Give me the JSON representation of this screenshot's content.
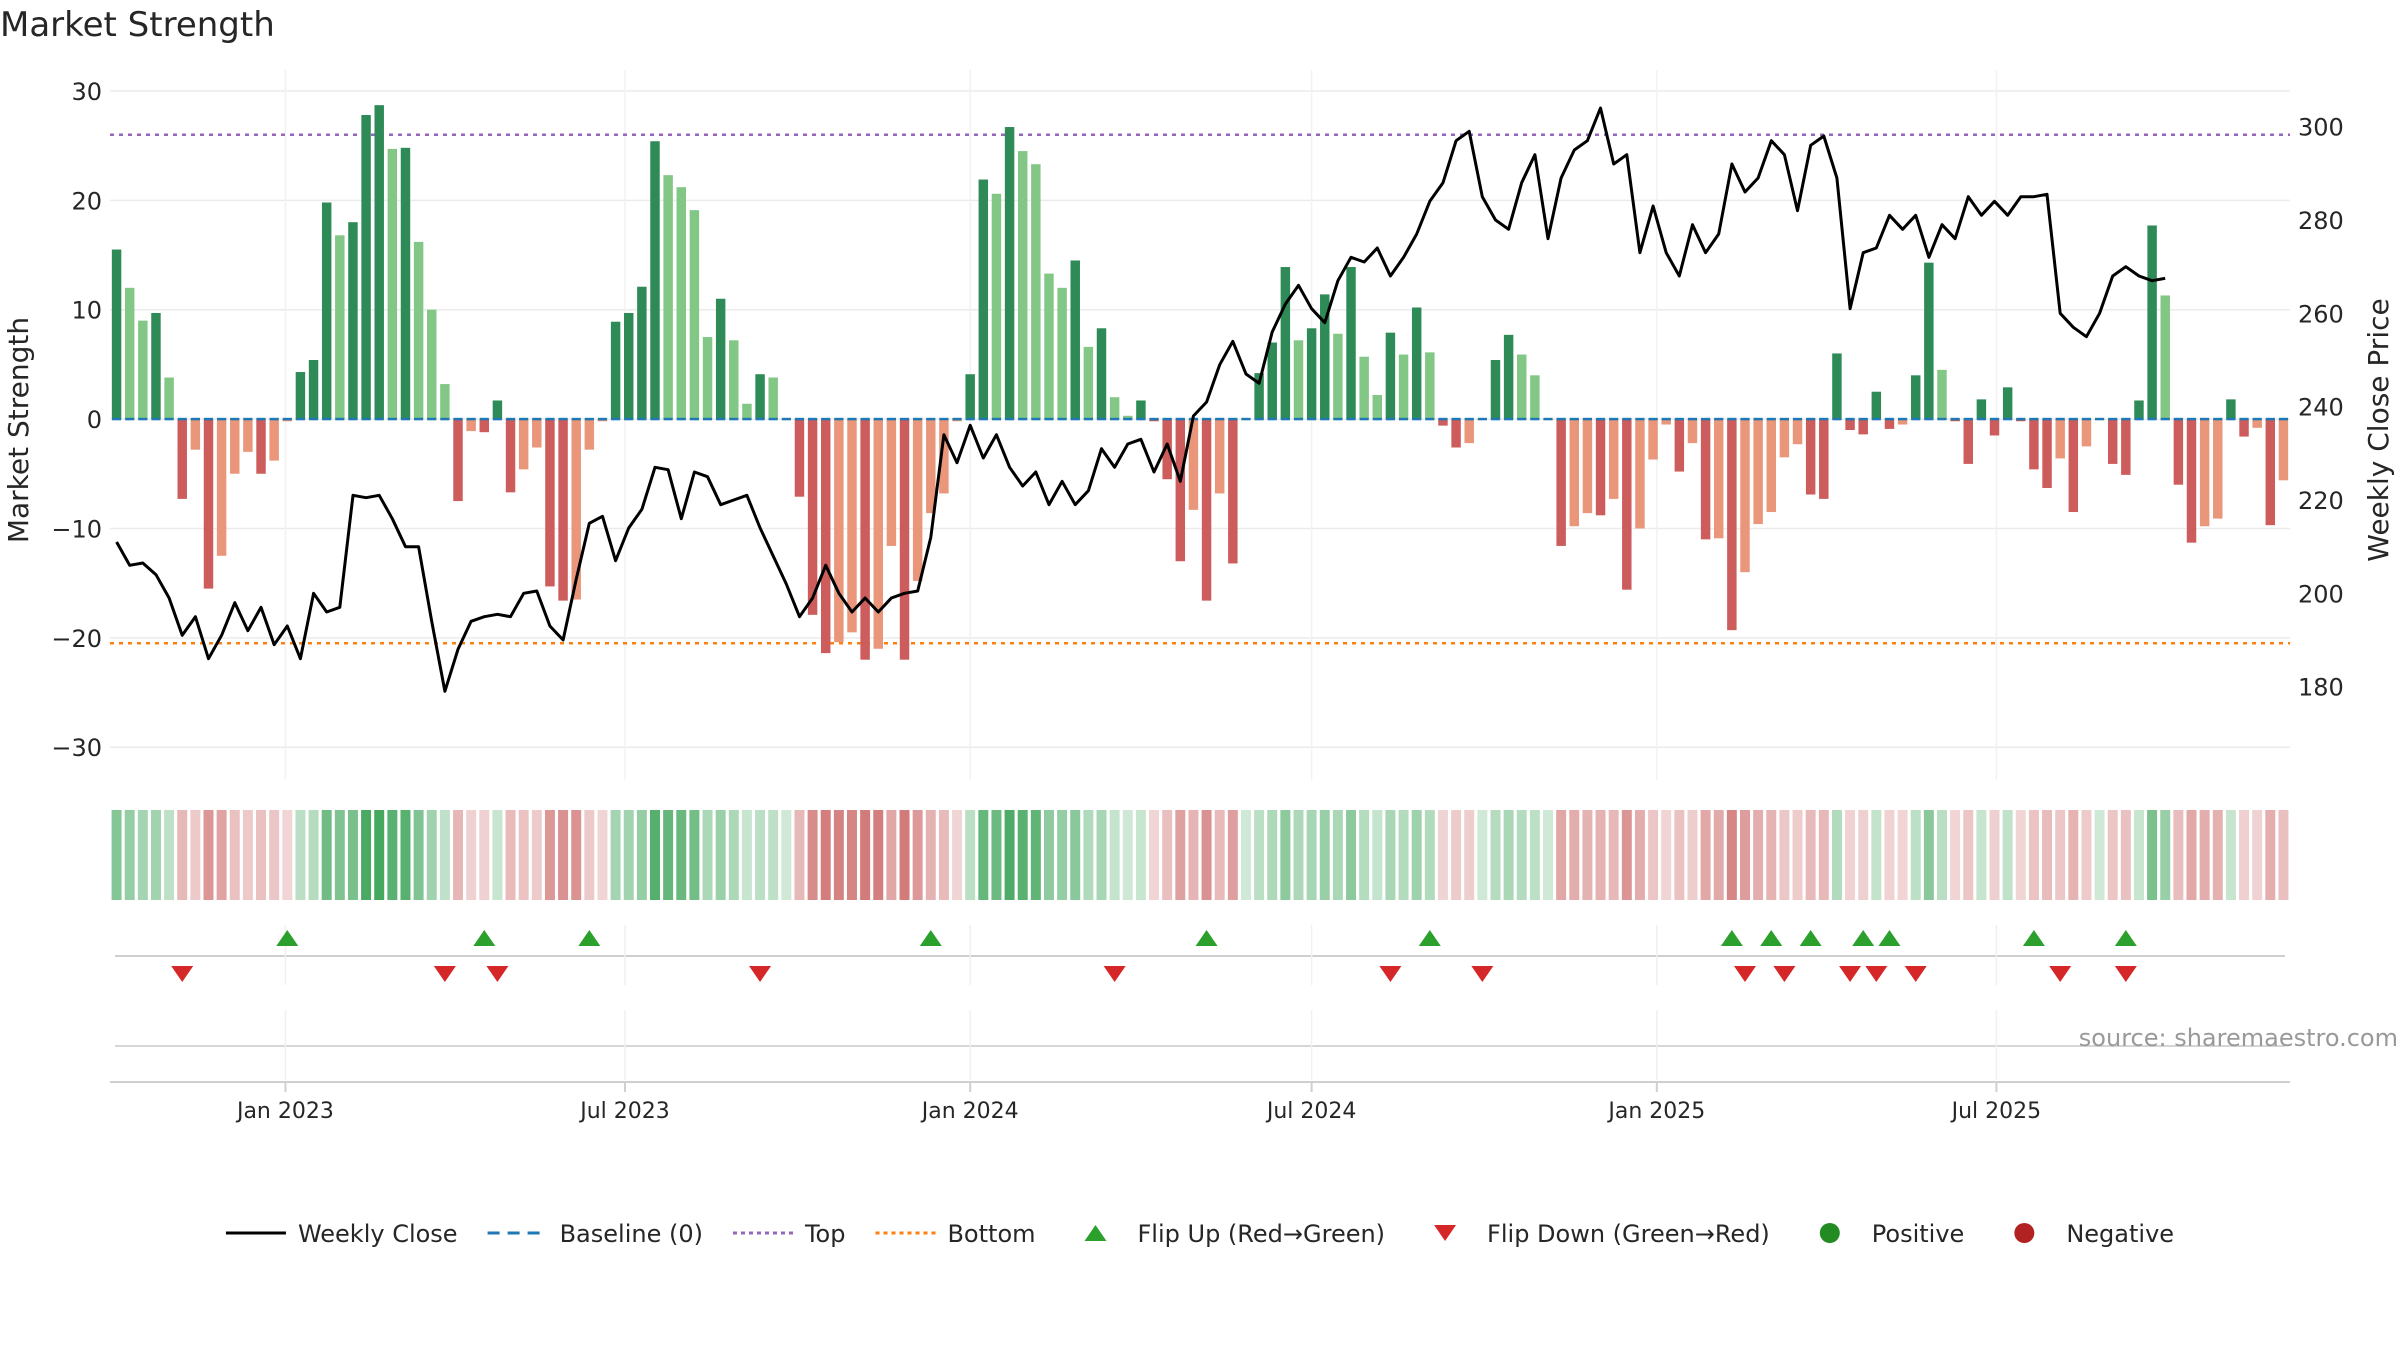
{
  "chart_data": {
    "type": "bar",
    "title": "Market Strength",
    "source": "source: sharemaestro.com",
    "ylabel_left": "Market Strength",
    "ylabel_right": "Weekly Close Price",
    "ylim_left": [
      -33,
      31
    ],
    "ylim_right": [
      160,
      310
    ],
    "yticks_left": [
      30,
      20,
      10,
      0,
      -10,
      -20,
      -30
    ],
    "yticks_left_labels": [
      "30",
      "20",
      "10",
      "0",
      "−10",
      "−20",
      "−30"
    ],
    "yticks_right": [
      300,
      280,
      260,
      240,
      220,
      200,
      180
    ],
    "yticks_right_labels": [
      "300",
      "280",
      "260",
      "240",
      "220",
      "200",
      "180"
    ],
    "top_level": 26,
    "bottom_level": -20.5,
    "week_start": "2022-10-03",
    "x_ticks": [
      {
        "label": "Jan 2023",
        "date": "2023-01-01"
      },
      {
        "label": "Jul 2023",
        "date": "2023-07-01"
      },
      {
        "label": "Jan 2024",
        "date": "2024-01-01"
      },
      {
        "label": "Jul 2024",
        "date": "2024-07-01"
      },
      {
        "label": "Jan 2025",
        "date": "2025-01-01"
      },
      {
        "label": "Jul 2025",
        "date": "2025-07-01"
      }
    ],
    "strength": [
      15.5,
      12,
      9,
      9.7,
      3.8,
      -7.3,
      -2.8,
      -15.5,
      -12.5,
      -5,
      -3,
      -5,
      -3.8,
      -0.2,
      4.3,
      5.4,
      19.8,
      16.8,
      18,
      27.8,
      28.7,
      24.7,
      24.8,
      16.2,
      10,
      3.2,
      -7.5,
      -1.1,
      -1.2,
      1.7,
      -6.7,
      -4.6,
      -2.6,
      -15.3,
      -16.6,
      -16.5,
      -2.8,
      -0.2,
      8.9,
      9.7,
      12.1,
      25.4,
      22.3,
      21.2,
      19.1,
      7.5,
      11,
      7.2,
      1.4,
      4.1,
      3.8,
      0,
      -7.1,
      -17.9,
      -21.4,
      -20.4,
      -19.5,
      -22,
      -21,
      -11.6,
      -22,
      -14.8,
      -8.6,
      -6.8,
      -0.2,
      4.1,
      21.9,
      20.6,
      26.7,
      24.5,
      23.3,
      13.3,
      12,
      14.5,
      6.6,
      8.3,
      2,
      0.3,
      1.7,
      -0.2,
      -5.5,
      -13,
      -8.3,
      -16.6,
      -6.8,
      -13.2,
      0,
      4.2,
      7,
      13.9,
      7.2,
      8.3,
      11.4,
      7.8,
      13.9,
      5.7,
      2.2,
      7.9,
      5.9,
      10.2,
      6.1,
      -0.6,
      -2.6,
      -2.2,
      0,
      5.4,
      7.7,
      5.9,
      4,
      0,
      -11.6,
      -9.8,
      -8.6,
      -8.8,
      -7.3,
      -15.6,
      -10,
      -3.7,
      -0.5,
      -4.8,
      -2.2,
      -11,
      -10.9,
      -19.3,
      -14,
      -9.6,
      -8.5,
      -3.5,
      -2.3,
      -6.9,
      -7.3,
      6,
      -1,
      -1.4,
      2.5,
      -0.9,
      -0.5,
      4,
      14.3,
      4.5,
      -0.2,
      -4.1,
      1.8,
      -1.5,
      2.9,
      -0.2,
      -4.6,
      -6.3,
      -3.6,
      -8.5,
      -2.5,
      0,
      -4.1,
      -5.1,
      1.7,
      17.7,
      11.3,
      -6,
      -11.3,
      -9.8,
      -9.1,
      1.8,
      -1.6,
      -0.8,
      -9.7,
      -5.6
    ],
    "close": [
      211,
      206,
      206.5,
      204,
      199,
      191,
      195,
      186,
      191,
      198,
      192,
      197,
      189,
      193,
      186,
      200,
      196,
      197,
      221,
      220.5,
      221,
      216,
      210,
      210,
      194,
      179,
      188,
      194,
      195,
      195.5,
      195,
      200,
      200.5,
      193,
      190,
      203,
      215,
      216.5,
      207,
      214,
      218,
      227,
      226.5,
      216,
      226,
      225,
      219,
      220,
      221,
      214,
      208,
      202,
      195,
      199,
      206,
      200,
      196,
      199,
      196,
      199,
      200,
      200.5,
      212,
      234,
      228,
      236,
      229,
      234,
      227,
      223,
      226,
      219,
      224,
      219,
      222,
      231,
      227,
      232,
      233,
      226,
      232,
      224,
      238,
      241,
      249,
      254,
      247,
      245,
      256,
      262,
      266,
      261,
      258,
      267,
      272,
      271,
      274,
      268,
      272,
      277,
      284,
      288,
      297,
      299,
      285,
      280,
      278,
      288,
      294,
      276,
      289,
      295,
      297,
      304,
      292,
      294,
      273,
      283,
      273,
      268,
      279,
      273,
      277,
      292,
      286,
      289,
      297,
      294,
      282,
      296,
      298,
      289,
      261,
      273,
      274,
      281,
      278,
      281,
      272,
      279,
      276,
      285,
      281,
      284,
      281,
      285,
      285,
      285.5,
      260,
      257,
      255,
      260,
      268,
      270,
      268,
      267,
      267.5
    ],
    "flip_up_idx": [
      13,
      28,
      36,
      62,
      83,
      100,
      123,
      126,
      129,
      133,
      135,
      146,
      153
    ],
    "flip_down_idx": [
      5,
      25,
      29,
      49,
      76,
      97,
      104,
      124,
      127,
      132,
      134,
      137,
      148,
      153
    ],
    "legend": [
      {
        "label": "Weekly Close",
        "kind": "line",
        "color": "#000000"
      },
      {
        "label": "Baseline (0)",
        "kind": "dash",
        "color": "#1f77b4"
      },
      {
        "label": "Top",
        "kind": "dot",
        "color": "#9467bd"
      },
      {
        "label": "Bottom",
        "kind": "dot",
        "color": "#ff7f0e"
      },
      {
        "label": "Flip Up (Red→Green)",
        "kind": "tri-up",
        "color": "#2ca02c"
      },
      {
        "label": "Flip Down (Green→Red)",
        "kind": "tri-down",
        "color": "#d62728"
      },
      {
        "label": "Positive",
        "kind": "circle",
        "color": "#228b22"
      },
      {
        "label": "Negative",
        "kind": "circle",
        "color": "#b22222"
      }
    ],
    "colors": {
      "pos_strong": "#2e8b57",
      "pos_weak": "#82c785",
      "neg_strong": "#cd5c5c",
      "neg_weak": "#e9967a",
      "line": "#000000",
      "baseline": "#1f77b4",
      "top": "#9467bd",
      "bottom": "#ff7f0e",
      "flip_up": "#2ca02c",
      "flip_down": "#d62728",
      "grid": "#ebebeb",
      "source": "#999999"
    }
  }
}
